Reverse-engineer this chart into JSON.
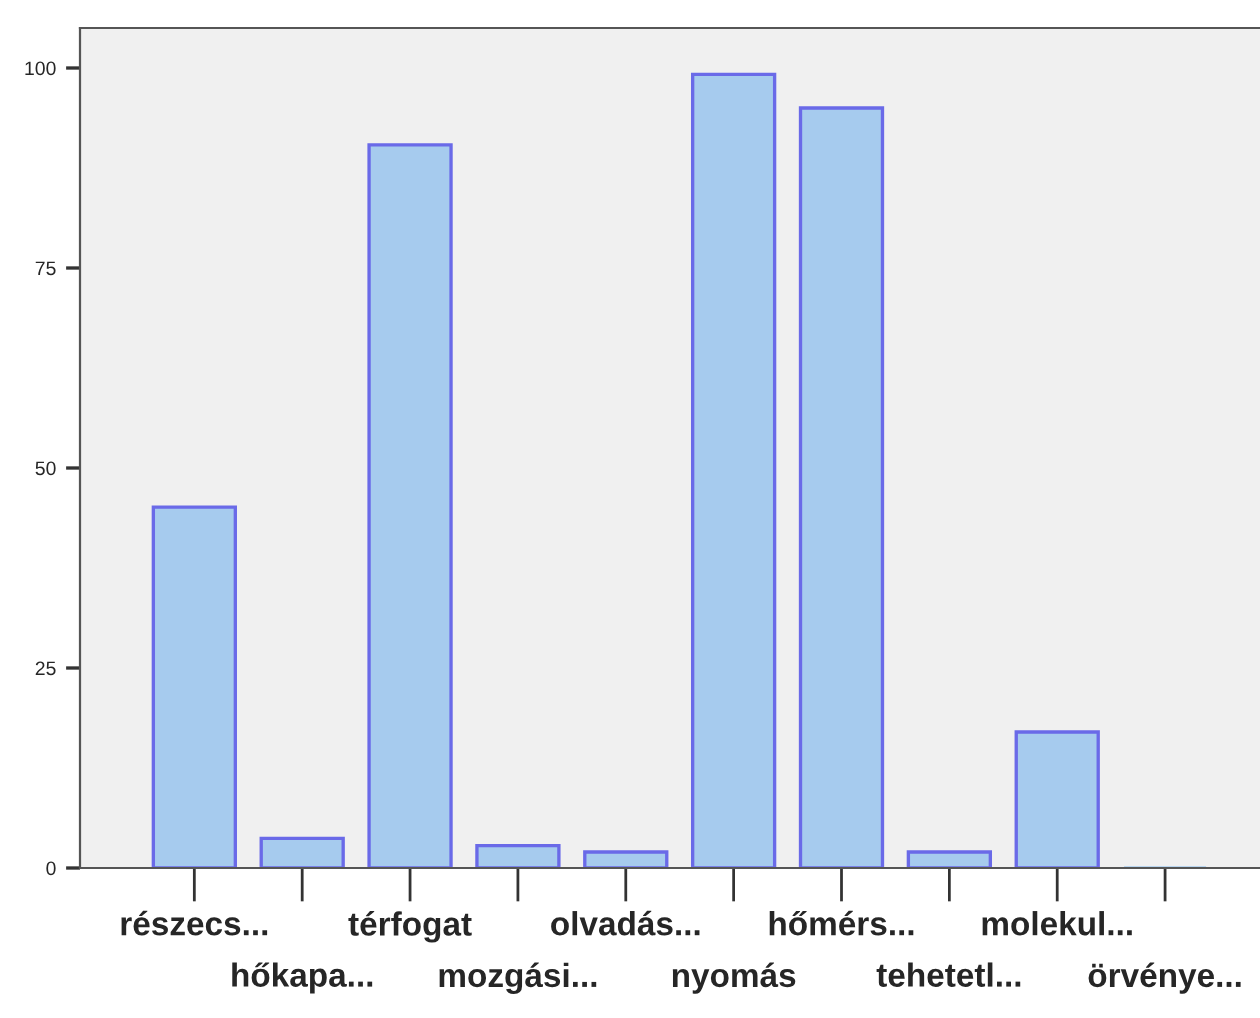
{
  "chart_data": {
    "type": "bar",
    "categories": [
      "részecs...",
      "hőkapa...",
      "térfogat",
      "mozgási...",
      "olvadás...",
      "nyomás",
      "hőmérs...",
      "tehetetl...",
      "molekul...",
      "örvénye..."
    ],
    "values": [
      45.1,
      3.7,
      90.4,
      2.8,
      2.0,
      99.2,
      95.0,
      2.0,
      17.0,
      0
    ],
    "color": "#a6cbee",
    "ylim": [
      0,
      105
    ],
    "yticks": [
      0,
      25,
      50,
      75,
      100
    ],
    "grid": false
  }
}
